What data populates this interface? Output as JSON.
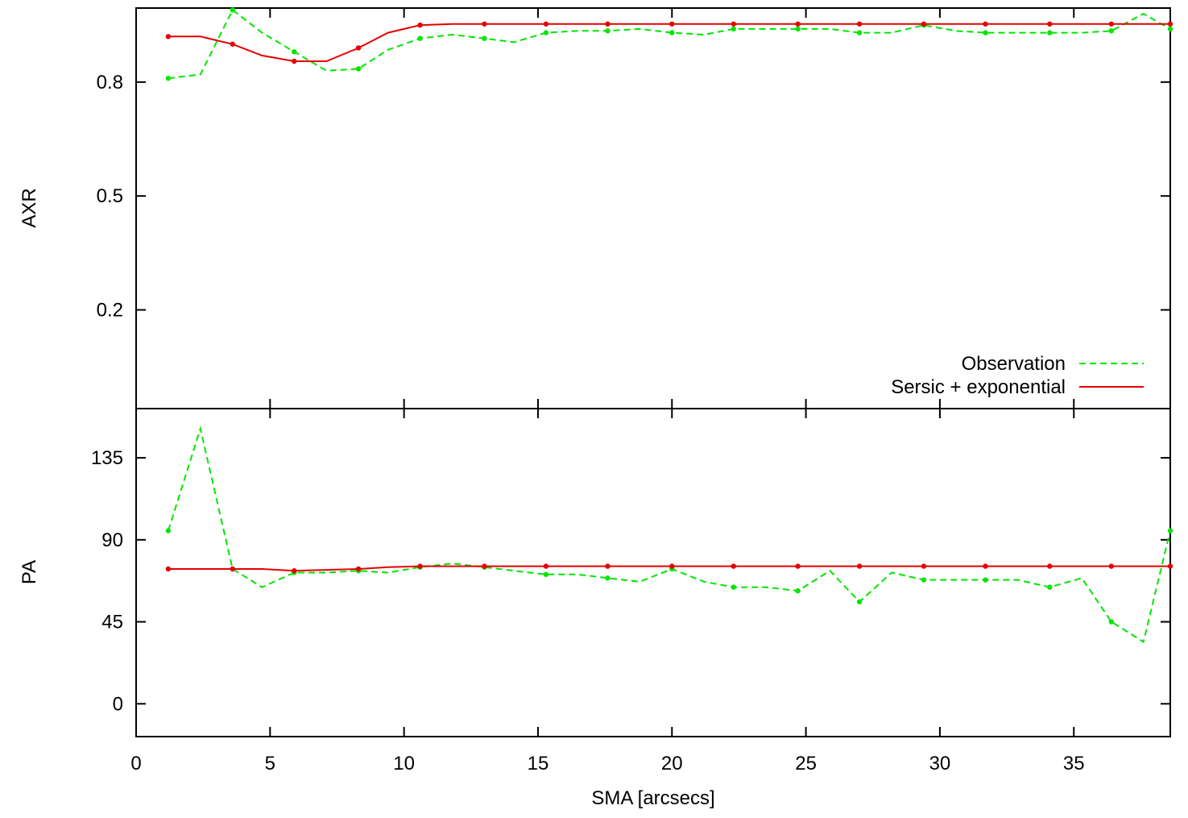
{
  "chart_data": [
    {
      "type": "line",
      "title": "",
      "xlabel": "",
      "ylabel": "AXR",
      "xlim": [
        0,
        38.6
      ],
      "ylim": [
        -0.06,
        0.995
      ],
      "yticks": [
        0.2,
        0.5,
        0.8
      ],
      "ytick_labels": [
        "0.2",
        "0.5",
        "0.8"
      ],
      "legend": {
        "position": "bottom-right"
      },
      "series": [
        {
          "name": "Observation",
          "color": "#00e600",
          "style": "dashed",
          "x": [
            1.2,
            2.4,
            3.6,
            4.7,
            5.9,
            7.1,
            8.3,
            9.4,
            10.6,
            11.8,
            13.0,
            14.1,
            15.3,
            16.5,
            17.6,
            18.8,
            20.0,
            21.2,
            22.3,
            23.5,
            24.7,
            25.9,
            27.0,
            28.2,
            29.4,
            30.6,
            31.7,
            32.9,
            34.1,
            35.3,
            36.4,
            37.6,
            38.6
          ],
          "y": [
            0.81,
            0.82,
            0.99,
            0.93,
            0.88,
            0.83,
            0.835,
            0.885,
            0.915,
            0.925,
            0.915,
            0.905,
            0.93,
            0.935,
            0.935,
            0.94,
            0.93,
            0.925,
            0.94,
            0.94,
            0.94,
            0.94,
            0.93,
            0.93,
            0.95,
            0.935,
            0.93,
            0.93,
            0.93,
            0.93,
            0.935,
            0.98,
            0.94
          ]
        },
        {
          "name": "Sersic + exponential",
          "color": "#e60000",
          "style": "solid",
          "x": [
            1.2,
            2.4,
            3.6,
            4.7,
            5.9,
            7.1,
            8.3,
            9.4,
            10.6,
            11.8,
            13.0,
            14.1,
            15.3,
            16.5,
            17.6,
            18.8,
            20.0,
            21.2,
            22.3,
            23.5,
            24.7,
            25.9,
            27.0,
            28.2,
            29.4,
            30.6,
            31.7,
            32.9,
            34.1,
            35.3,
            36.4,
            37.6,
            38.6
          ],
          "y": [
            0.92,
            0.92,
            0.9,
            0.87,
            0.855,
            0.855,
            0.89,
            0.93,
            0.95,
            0.953,
            0.953,
            0.953,
            0.953,
            0.953,
            0.953,
            0.953,
            0.953,
            0.953,
            0.953,
            0.953,
            0.953,
            0.953,
            0.953,
            0.953,
            0.953,
            0.953,
            0.953,
            0.953,
            0.953,
            0.953,
            0.953,
            0.953,
            0.953
          ]
        }
      ]
    },
    {
      "type": "line",
      "title": "",
      "xlabel": "SMA [arcsecs]",
      "ylabel": "PA",
      "xlim": [
        0,
        38.6
      ],
      "ylim": [
        -18,
        162
      ],
      "xticks": [
        0,
        5,
        10,
        15,
        20,
        25,
        30,
        35
      ],
      "xtick_labels": [
        "0",
        "5",
        "10",
        "15",
        "20",
        "25",
        "30",
        "35"
      ],
      "yticks": [
        0,
        45,
        90,
        135
      ],
      "ytick_labels": [
        "0",
        "45",
        "90",
        "135"
      ],
      "series": [
        {
          "name": "Observation",
          "color": "#00e600",
          "style": "dashed",
          "x": [
            1.2,
            2.4,
            3.6,
            4.7,
            5.9,
            7.1,
            8.3,
            9.4,
            10.6,
            11.8,
            13.0,
            14.1,
            15.3,
            16.5,
            17.6,
            18.8,
            20.0,
            21.2,
            22.3,
            23.5,
            24.7,
            25.9,
            27.0,
            28.2,
            29.4,
            30.6,
            31.7,
            32.9,
            34.1,
            35.3,
            36.4,
            37.6,
            38.6
          ],
          "y": [
            95,
            151,
            74,
            64,
            72,
            72,
            73,
            72,
            75,
            77,
            75,
            73,
            71,
            71,
            69,
            67,
            74,
            67,
            64,
            64,
            62,
            73,
            56,
            72,
            68,
            68,
            68,
            68,
            64,
            69,
            45,
            34,
            95
          ]
        },
        {
          "name": "Sersic + exponential",
          "color": "#e60000",
          "style": "solid",
          "x": [
            1.2,
            2.4,
            3.6,
            4.7,
            5.9,
            7.1,
            8.3,
            9.4,
            10.6,
            11.8,
            13.0,
            14.1,
            15.3,
            16.5,
            17.6,
            18.8,
            20.0,
            21.2,
            22.3,
            23.5,
            24.7,
            25.9,
            27.0,
            28.2,
            29.4,
            30.6,
            31.7,
            32.9,
            34.1,
            35.3,
            36.4,
            37.6,
            38.6
          ],
          "y": [
            74,
            74,
            74,
            74,
            73,
            73.5,
            74,
            75,
            75.5,
            75.5,
            75.5,
            75.5,
            75.5,
            75.5,
            75.5,
            75.5,
            75.5,
            75.5,
            75.5,
            75.5,
            75.5,
            75.5,
            75.5,
            75.5,
            75.5,
            75.5,
            75.5,
            75.5,
            75.5,
            75.5,
            75.5,
            75.5,
            75.5
          ]
        }
      ]
    }
  ]
}
